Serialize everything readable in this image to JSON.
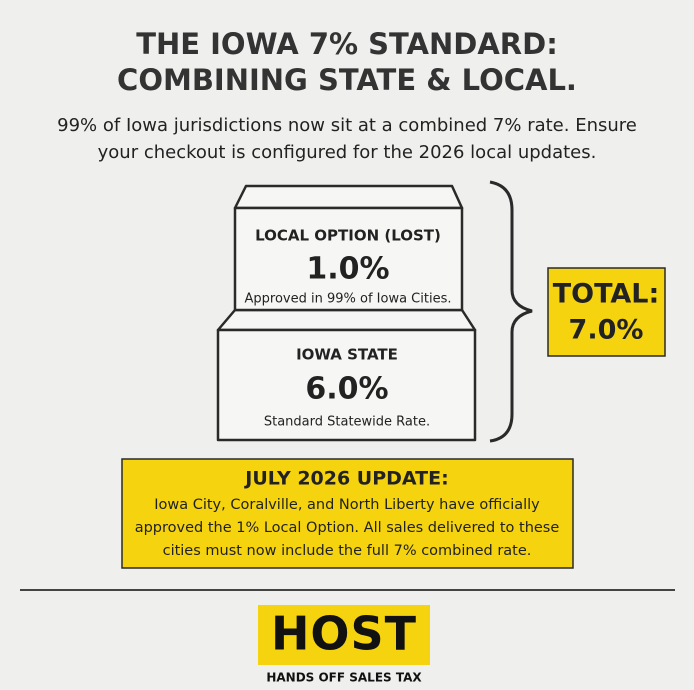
{
  "header": {
    "title_lines": [
      "THE IOWA 7% STANDARD:",
      "COMBINING STATE & LOCAL."
    ],
    "subtitle_lines": [
      "99% of Iowa jurisdictions now sit at a combined 7% rate. Ensure",
      "your checkout is configured for the 2026 local updates."
    ]
  },
  "stack": {
    "local": {
      "label": "LOCAL OPTION (LOST)",
      "rate": "1.0%",
      "note": "Approved in 99% of Iowa Cities."
    },
    "state": {
      "label": "IOWA STATE",
      "rate": "6.0%",
      "note": "Standard Statewide Rate."
    }
  },
  "total": {
    "label": "TOTAL:",
    "rate": "7.0%"
  },
  "update": {
    "title": "JULY 2026 UPDATE:",
    "lines": [
      "Iowa City, Coralville, and North Liberty have officially",
      "approved the 1% Local Option. All sales delivered to these",
      "cities must now include the full 7% combined rate."
    ]
  },
  "logo": {
    "name": "HOST",
    "tagline": "HANDS OFF SALES TAX"
  }
}
